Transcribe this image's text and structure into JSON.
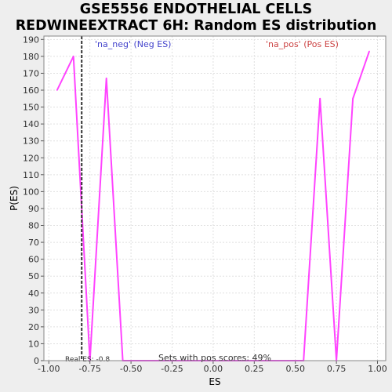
{
  "chart_data": {
    "type": "line",
    "title_lines": [
      "GSE5556 ENDOTHELIAL CELLS",
      "REDWINEEXTRACT 6H: Random ES distribution"
    ],
    "xlabel": "ES",
    "ylabel": "P(ES)",
    "xlim": [
      -1.03,
      1.05
    ],
    "ylim": [
      0,
      192
    ],
    "x_ticks": [
      -1.0,
      -0.75,
      -0.5,
      -0.25,
      0.0,
      0.25,
      0.5,
      0.75,
      1.0
    ],
    "x_tick_labels": [
      "-1.00",
      "-0.75",
      "-0.50",
      "-0.25",
      "0.00",
      "0.25",
      "0.50",
      "0.75",
      "1.00"
    ],
    "y_ticks": [
      0,
      10,
      20,
      30,
      40,
      50,
      60,
      70,
      80,
      90,
      100,
      110,
      120,
      130,
      140,
      150,
      160,
      170,
      180,
      190
    ],
    "grid": true,
    "series": [
      {
        "color": "#ff44ff",
        "x": [
          -0.95,
          -0.85,
          -0.75,
          -0.65,
          -0.55,
          -0.45,
          -0.35,
          -0.25,
          -0.15,
          -0.05,
          0.05,
          0.15,
          0.25,
          0.35,
          0.45,
          0.55,
          0.65,
          0.75,
          0.85,
          0.95
        ],
        "y": [
          160,
          180,
          0,
          167,
          0,
          0,
          0,
          0,
          0,
          0,
          0,
          0,
          0,
          0,
          0,
          0,
          155,
          0,
          155,
          183
        ]
      }
    ],
    "real_es": -0.8,
    "annotations": {
      "neg_label": "'na_neg' (Neg ES)",
      "pos_label": "'na_pos' (Pos ES)",
      "real_es_label": "Real ES: -0.8",
      "pos_scores_label": "Sets with pos scores: 49%"
    },
    "colors": {
      "neg_label": "#4444cc",
      "pos_label": "#cc4444",
      "real_es_line": "#333333",
      "plot_bg": "#ffffff",
      "grid": "#e0e0e0"
    }
  }
}
